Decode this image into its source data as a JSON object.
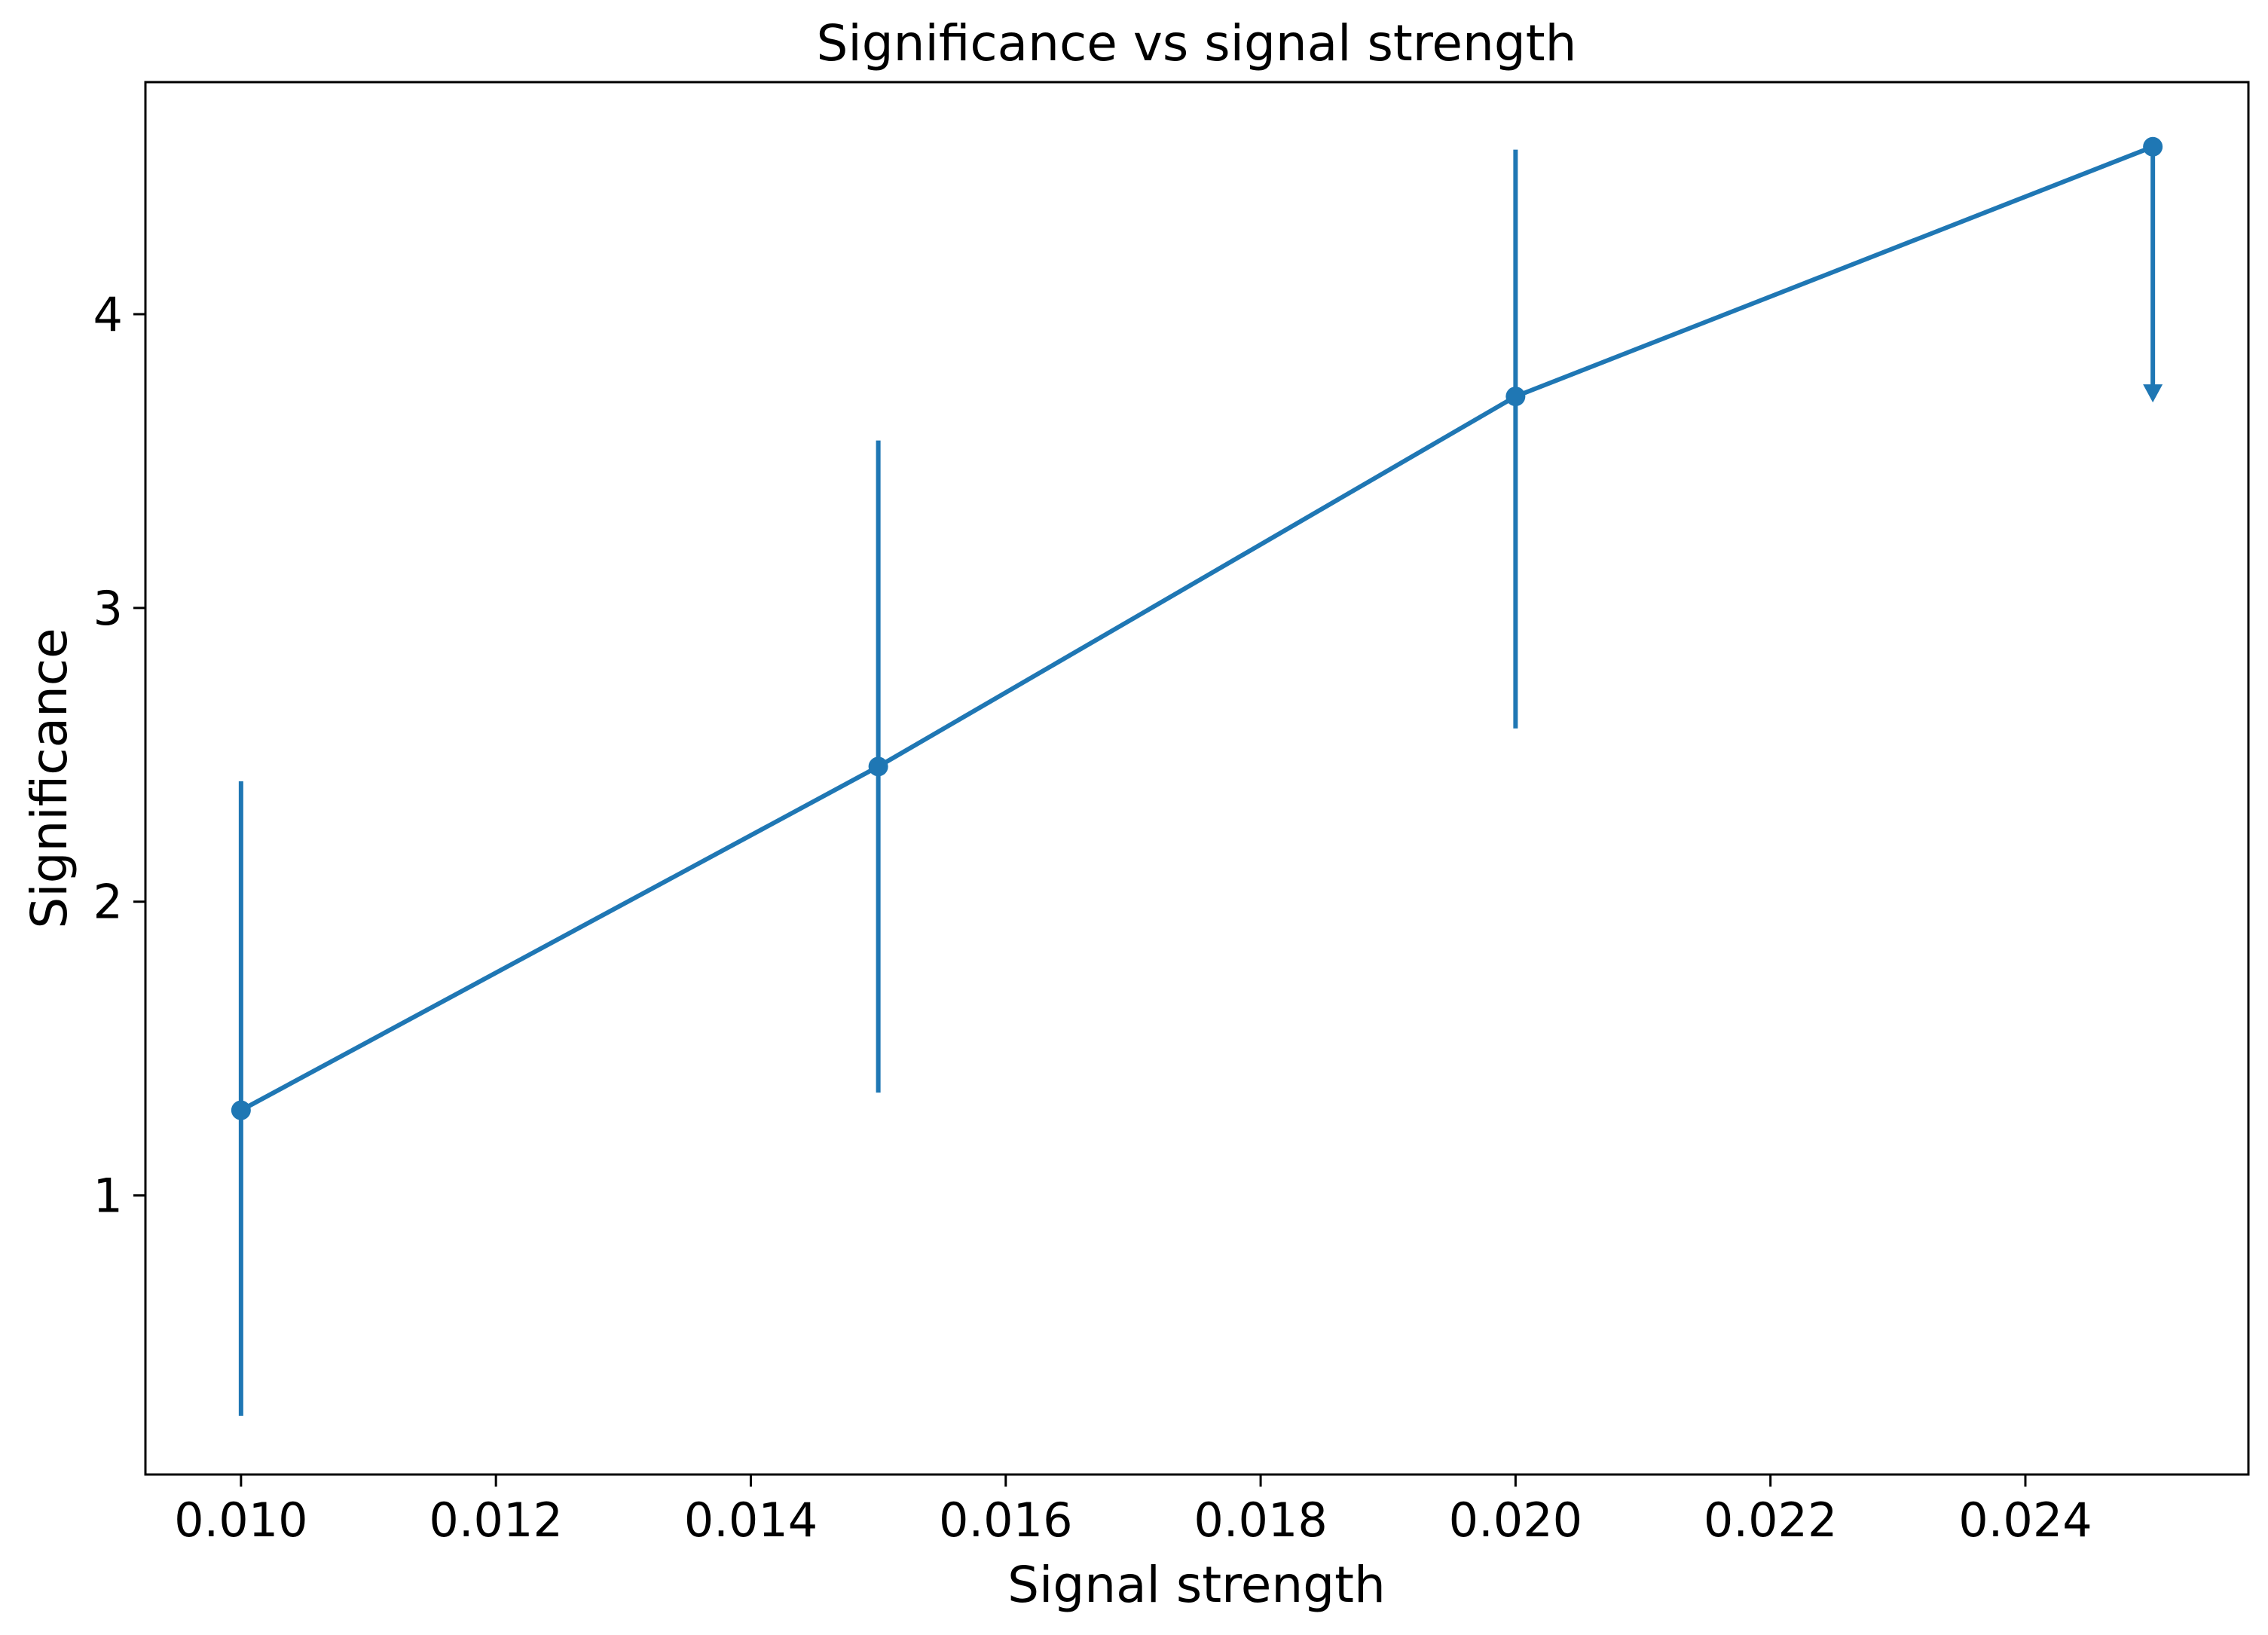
{
  "chart_data": {
    "type": "line",
    "title": "Significance vs signal strength",
    "xlabel": "Signal strength",
    "ylabel": "Significance",
    "xlim": [
      0.00925,
      0.02575
    ],
    "ylim": [
      0.05,
      4.79
    ],
    "x_ticks": [
      0.01,
      0.012,
      0.014,
      0.016,
      0.018,
      0.02,
      0.022,
      0.024
    ],
    "x_tick_labels": [
      "0.010",
      "0.012",
      "0.014",
      "0.016",
      "0.018",
      "0.020",
      "0.022",
      "0.024"
    ],
    "y_ticks": [
      1,
      2,
      3,
      4
    ],
    "y_tick_labels": [
      "1",
      "2",
      "3",
      "4"
    ],
    "grid": false,
    "series": [
      {
        "color": "#1f77b4",
        "points": [
          {
            "x": 0.01,
            "y": 1.29,
            "err_low": 0.25,
            "err_high": 2.41
          },
          {
            "x": 0.015,
            "y": 2.46,
            "err_low": 1.35,
            "err_high": 3.57
          },
          {
            "x": 0.02,
            "y": 3.72,
            "err_low": 2.59,
            "err_high": 4.56
          },
          {
            "x": 0.025,
            "y": 4.57,
            "upper_limit": true,
            "arrow_to": 3.71
          }
        ]
      }
    ]
  }
}
